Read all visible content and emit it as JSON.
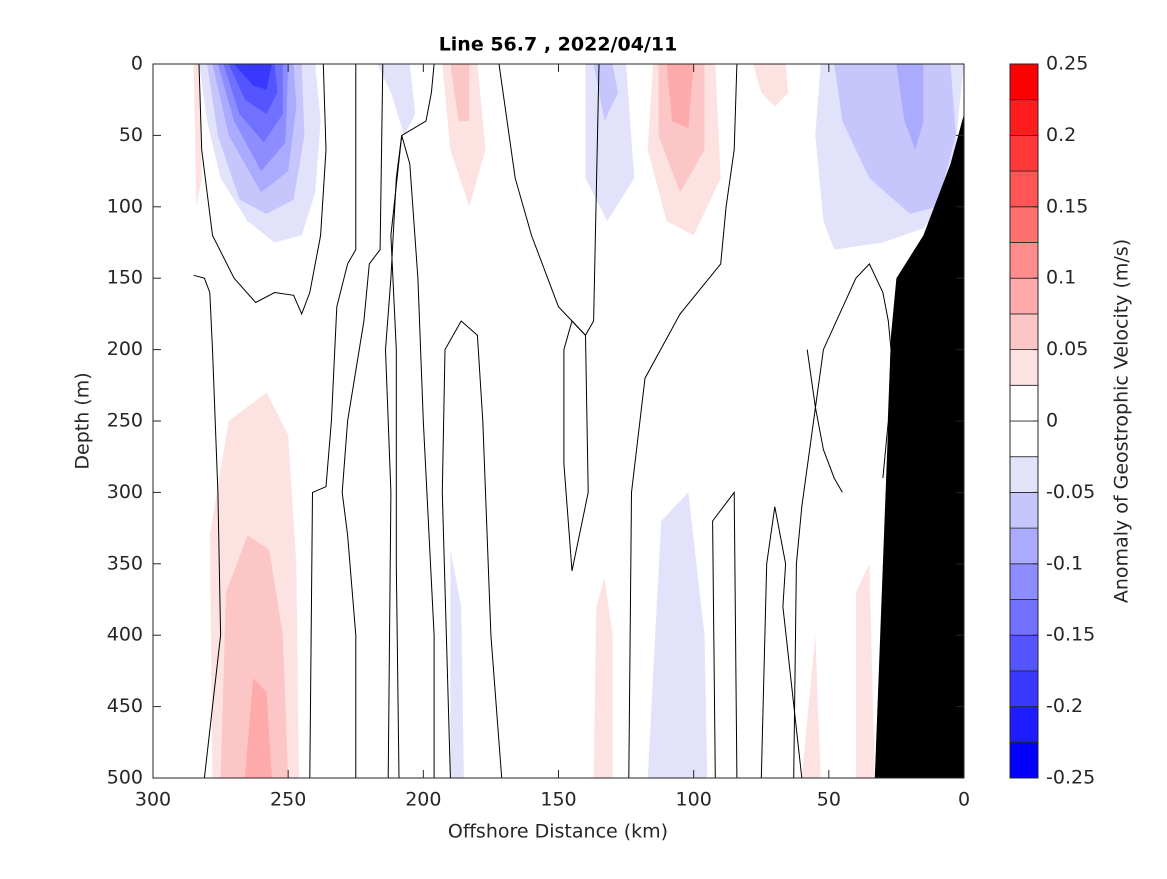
{
  "chart_data": {
    "type": "contour",
    "title": "Line 56.7 , 2022/04/11",
    "xlabel": "Offshore Distance (km)",
    "ylabel": "Depth (m)",
    "colorbar_label": "Anomaly of Geostrophic Velocity (m/s)",
    "xlim": [
      300,
      0
    ],
    "ylim": [
      500,
      0
    ],
    "xticks": [
      300,
      250,
      200,
      150,
      100,
      50,
      0
    ],
    "yticks": [
      0,
      50,
      100,
      150,
      200,
      250,
      300,
      350,
      400,
      450,
      500
    ],
    "levels": [
      -0.25,
      -0.225,
      -0.2,
      -0.175,
      -0.15,
      -0.125,
      -0.1,
      -0.075,
      -0.05,
      -0.025,
      0,
      0.025,
      0.05,
      0.075,
      0.1,
      0.125,
      0.15,
      0.175,
      0.2,
      0.225,
      0.25
    ],
    "colors": [
      "#0000ff",
      "#1c1cff",
      "#3838ff",
      "#5555ff",
      "#7171ff",
      "#8d8dff",
      "#aaaaff",
      "#c6c6fc",
      "#e2e2fa",
      "#ffffff",
      "#ffffff",
      "#fde2e2",
      "#fcc6c6",
      "#ffaaaa",
      "#ff8d8d",
      "#ff7171",
      "#ff5555",
      "#ff3838",
      "#ff1c1c",
      "#ff0000"
    ],
    "cticks": [
      0.25,
      0.2,
      0.15,
      0.1,
      0.05,
      0,
      -0.05,
      -0.1,
      -0.15,
      -0.2,
      -0.25
    ],
    "regions": [
      {
        "level": -0.025,
        "x": [
          283,
          280,
          275,
          265,
          255,
          245,
          240,
          238,
          240
        ],
        "y": [
          0,
          40,
          80,
          110,
          125,
          120,
          90,
          40,
          0
        ]
      },
      {
        "level": -0.05,
        "x": [
          280,
          276,
          268,
          258,
          248,
          244,
          245
        ],
        "y": [
          0,
          50,
          95,
          105,
          95,
          50,
          0
        ]
      },
      {
        "level": -0.075,
        "x": [
          278,
          272,
          260,
          250,
          247,
          248
        ],
        "y": [
          0,
          50,
          90,
          75,
          30,
          0
        ]
      },
      {
        "level": -0.1,
        "x": [
          276,
          270,
          260,
          251,
          250
        ],
        "y": [
          0,
          40,
          75,
          55,
          0
        ]
      },
      {
        "level": -0.125,
        "x": [
          274,
          268,
          259,
          252,
          252
        ],
        "y": [
          0,
          35,
          55,
          35,
          0
        ]
      },
      {
        "level": -0.15,
        "x": [
          272,
          266,
          258,
          254,
          255
        ],
        "y": [
          0,
          25,
          35,
          20,
          0
        ]
      },
      {
        "level": -0.175,
        "x": [
          270,
          263,
          258,
          256
        ],
        "y": [
          0,
          15,
          18,
          0
        ]
      },
      {
        "level": 0.025,
        "x": [
          278,
          279,
          272,
          258,
          250,
          247,
          246
        ],
        "y": [
          500,
          330,
          250,
          230,
          260,
          350,
          500
        ]
      },
      {
        "level": 0.05,
        "x": [
          275,
          273,
          265,
          257,
          252,
          250
        ],
        "y": [
          500,
          370,
          330,
          340,
          400,
          500
        ]
      },
      {
        "level": 0.075,
        "x": [
          266,
          263,
          258,
          256
        ],
        "y": [
          500,
          430,
          440,
          500
        ]
      },
      {
        "level": 0.025,
        "x": [
          115,
          117,
          110,
          100,
          90,
          92
        ],
        "y": [
          0,
          60,
          110,
          120,
          80,
          0
        ]
      },
      {
        "level": 0.05,
        "x": [
          113,
          113,
          105,
          96,
          96
        ],
        "y": [
          0,
          50,
          90,
          60,
          0
        ]
      },
      {
        "level": 0.075,
        "x": [
          110,
          108,
          102,
          100
        ],
        "y": [
          0,
          40,
          45,
          0
        ]
      },
      {
        "level": 0.025,
        "x": [
          193,
          190,
          183,
          177,
          180
        ],
        "y": [
          0,
          60,
          100,
          60,
          0
        ]
      },
      {
        "level": 0.05,
        "x": [
          190,
          187,
          183,
          183
        ],
        "y": [
          0,
          40,
          40,
          0
        ]
      },
      {
        "level": -0.025,
        "x": [
          140,
          140,
          132,
          122,
          125
        ],
        "y": [
          0,
          80,
          110,
          80,
          0
        ]
      },
      {
        "level": -0.05,
        "x": [
          137,
          133,
          128,
          130
        ],
        "y": [
          0,
          40,
          20,
          0
        ]
      },
      {
        "level": -0.025,
        "x": [
          117,
          112,
          102,
          96,
          95
        ],
        "y": [
          500,
          320,
          300,
          400,
          500
        ]
      },
      {
        "level": -0.025,
        "x": [
          190,
          190,
          186,
          185
        ],
        "y": [
          500,
          340,
          380,
          500
        ]
      },
      {
        "level": -0.025,
        "x": [
          53,
          55,
          52,
          48,
          30,
          15,
          5,
          0
        ],
        "y": [
          0,
          50,
          110,
          130,
          125,
          115,
          90,
          0
        ]
      },
      {
        "level": -0.05,
        "x": [
          48,
          45,
          35,
          20,
          10,
          3,
          5
        ],
        "y": [
          0,
          40,
          80,
          105,
          100,
          50,
          0
        ]
      },
      {
        "level": -0.075,
        "x": [
          25,
          22,
          18,
          15,
          15
        ],
        "y": [
          0,
          40,
          60,
          40,
          0
        ]
      },
      {
        "level": -0.025,
        "x": [
          217,
          212,
          207,
          203,
          205
        ],
        "y": [
          0,
          20,
          50,
          35,
          0
        ]
      },
      {
        "level": 0.025,
        "x": [
          40,
          40,
          35,
          33
        ],
        "y": [
          500,
          370,
          350,
          500
        ]
      },
      {
        "level": 0.025,
        "x": [
          60,
          55,
          53
        ],
        "y": [
          500,
          400,
          500
        ]
      },
      {
        "level": 0.025,
        "x": [
          137,
          136,
          133,
          130,
          130
        ],
        "y": [
          500,
          380,
          360,
          400,
          500
        ]
      },
      {
        "level": 0.025,
        "x": [
          285,
          284,
          282,
          283
        ],
        "y": [
          0,
          100,
          80,
          0
        ]
      },
      {
        "level": 0.025,
        "x": [
          78,
          75,
          70,
          65,
          66
        ],
        "y": [
          0,
          20,
          30,
          20,
          0
        ]
      }
    ],
    "zero_contours": [
      {
        "x": [
          285,
          281,
          279,
          278,
          276,
          275,
          281
        ],
        "y": [
          148,
          150,
          160,
          200,
          300,
          400,
          500
        ]
      },
      {
        "x": [
          283,
          282,
          278,
          270,
          262,
          255,
          248,
          245,
          242,
          238,
          236,
          237
        ],
        "y": [
          0,
          60,
          120,
          150,
          167,
          160,
          162,
          175,
          160,
          120,
          60,
          0
        ]
      },
      {
        "x": [
          242,
          241,
          236,
          234,
          232,
          228,
          225,
          225
        ],
        "y": [
          500,
          300,
          296,
          250,
          170,
          140,
          130,
          0
        ]
      },
      {
        "x": [
          225,
          225,
          228,
          230,
          228,
          222,
          220,
          216,
          215
        ],
        "y": [
          500,
          400,
          330,
          300,
          250,
          180,
          140,
          130,
          0
        ]
      },
      {
        "x": [
          213,
          212,
          214,
          212,
          210,
          208,
          205,
          202,
          200,
          196,
          196
        ],
        "y": [
          500,
          300,
          200,
          150,
          80,
          50,
          70,
          150,
          250,
          400,
          500
        ]
      },
      {
        "x": [
          209,
          210,
          210,
          212,
          208,
          199,
          197,
          196
        ],
        "y": [
          500,
          350,
          200,
          120,
          50,
          40,
          20,
          0
        ]
      },
      {
        "x": [
          190,
          193,
          192,
          186,
          180,
          178,
          175,
          171
        ],
        "y": [
          500,
          300,
          200,
          180,
          190,
          250,
          400,
          500
        ]
      },
      {
        "x": [
          145,
          148,
          148,
          145,
          140,
          139,
          145
        ],
        "y": [
          355,
          280,
          200,
          180,
          190,
          300,
          355
        ]
      },
      {
        "x": [
          124,
          123,
          118,
          105,
          90,
          88,
          85,
          84
        ],
        "y": [
          500,
          300,
          220,
          175,
          140,
          100,
          60,
          0
        ]
      },
      {
        "x": [
          92,
          93,
          85,
          84
        ],
        "y": [
          500,
          320,
          300,
          500
        ]
      },
      {
        "x": [
          63,
          62,
          60,
          52,
          40,
          35,
          30,
          28,
          27,
          28,
          30
        ],
        "y": [
          500,
          350,
          310,
          200,
          150,
          140,
          160,
          180,
          200,
          250,
          290
        ]
      },
      {
        "x": [
          75,
          73,
          70,
          66,
          67,
          60
        ],
        "y": [
          500,
          350,
          310,
          350,
          380,
          500
        ]
      },
      {
        "x": [
          45,
          48,
          52,
          55,
          58
        ],
        "y": [
          300,
          290,
          270,
          240,
          200
        ]
      },
      {
        "x": [
          172,
          166,
          160,
          150,
          145,
          140,
          137,
          135
        ],
        "y": [
          0,
          80,
          120,
          170,
          180,
          190,
          180,
          0
        ]
      }
    ],
    "bottom": {
      "color": "#000000",
      "x": [
        0,
        5,
        15,
        25,
        27,
        28,
        30,
        33,
        0
      ],
      "y": [
        35,
        70,
        120,
        150,
        190,
        250,
        350,
        500,
        500
      ]
    }
  }
}
